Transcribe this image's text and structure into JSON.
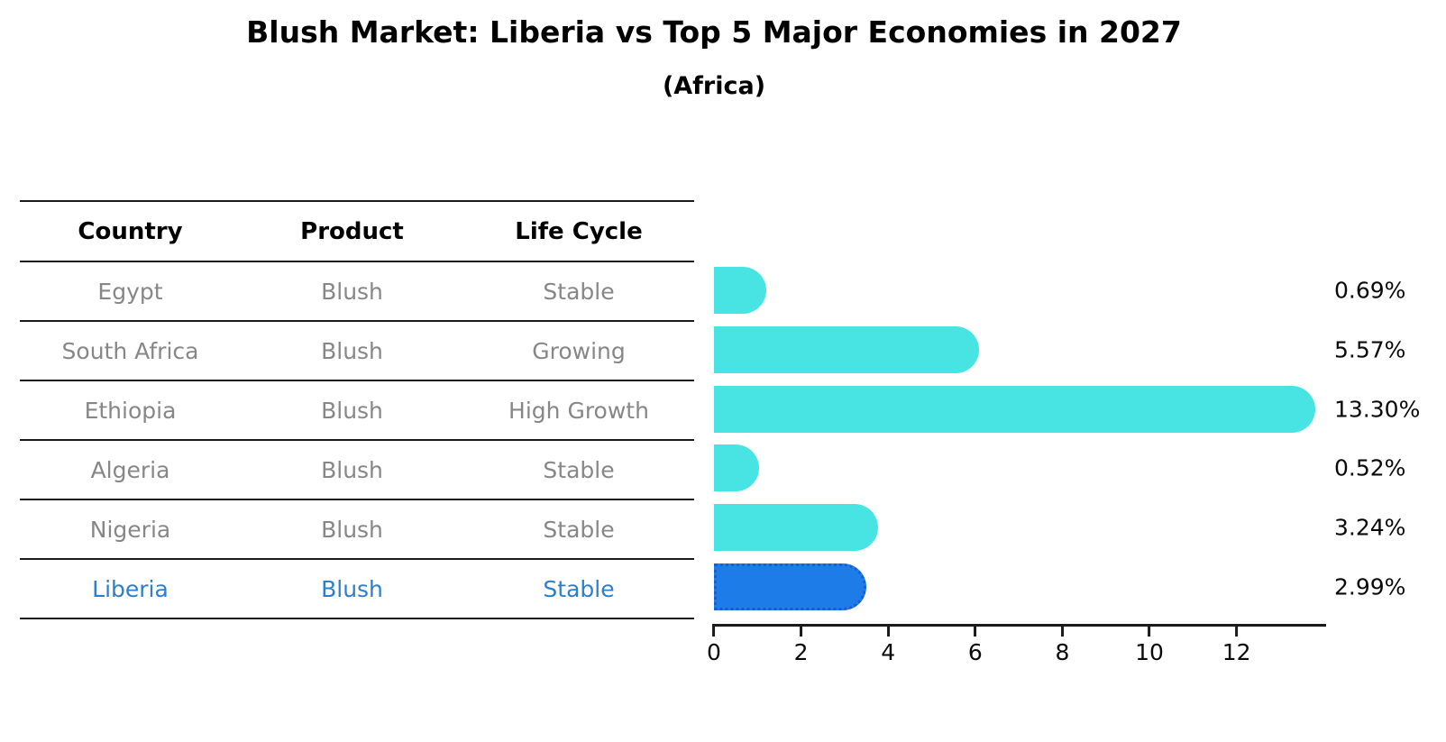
{
  "title": "Blush Market: Liberia vs Top 5 Major Economies in 2027",
  "subtitle": "(Africa)",
  "table": {
    "headers": [
      "Country",
      "Product",
      "Life Cycle"
    ],
    "rows": [
      {
        "country": "Egypt",
        "product": "Blush",
        "life_cycle": "Stable"
      },
      {
        "country": "South Africa",
        "product": "Blush",
        "life_cycle": "Growing"
      },
      {
        "country": "Ethiopia",
        "product": "Blush",
        "life_cycle": "High Growth"
      },
      {
        "country": "Algeria",
        "product": "Blush",
        "life_cycle": "Stable"
      },
      {
        "country": "Nigeria",
        "product": "Blush",
        "life_cycle": "Stable"
      },
      {
        "country": "Liberia",
        "product": "Blush",
        "life_cycle": "Stable"
      }
    ]
  },
  "chart_data": {
    "type": "bar",
    "orientation": "horizontal",
    "title": "Blush Market: Liberia vs Top 5 Major Economies in 2027",
    "subtitle": "(Africa)",
    "categories": [
      "Egypt",
      "South Africa",
      "Ethiopia",
      "Algeria",
      "Nigeria",
      "Liberia"
    ],
    "values": [
      0.69,
      5.57,
      13.3,
      0.52,
      3.24,
      2.99
    ],
    "value_labels": [
      "0.69%",
      "5.57%",
      "13.30%",
      "0.52%",
      "3.24%",
      "2.99%"
    ],
    "unit": "%",
    "xlabel": "",
    "ylabel": "",
    "xlim": [
      0,
      14
    ],
    "x_ticks": [
      0,
      2,
      4,
      6,
      8,
      10,
      12
    ],
    "grid": false,
    "legend": false,
    "highlight_category": "Liberia",
    "highlight_index": 5,
    "colors": {
      "bar": "#48E4E4",
      "highlight_bar": "#1E7CE8",
      "highlight_border": "#155FD0",
      "axis": "#1a1a1a",
      "table_text": "#878787",
      "table_header_text": "#000000",
      "highlight_text": "#2E7FC9",
      "value_label_text": "#0a0a0a"
    }
  }
}
